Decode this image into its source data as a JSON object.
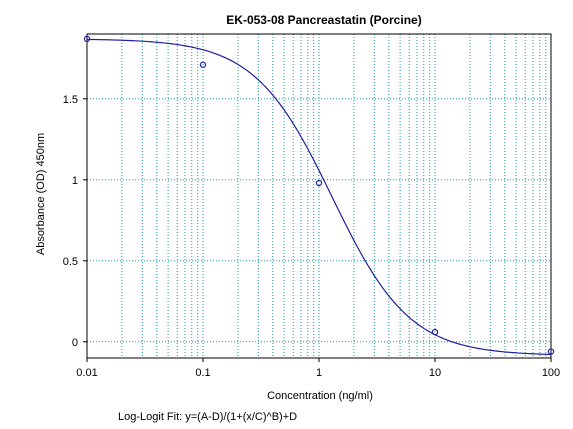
{
  "chart_data": {
    "type": "scatter",
    "title": "EK-053-08 Pancreastatin (Porcine)",
    "xlabel": "Concentration (ng/ml)",
    "ylabel": "Absorbance (OD) 450nm",
    "x_scale": "log",
    "xlim": [
      0.01,
      100
    ],
    "ylim": [
      -0.1,
      1.9
    ],
    "x_ticks": [
      0.01,
      0.1,
      1,
      10,
      100
    ],
    "x_tick_labels": [
      "0.01",
      "0.1",
      "1",
      "10",
      "100"
    ],
    "y_ticks": [
      0,
      0.5,
      1,
      1.5
    ],
    "y_tick_labels": [
      "0",
      "0.5",
      "1",
      "1.5"
    ],
    "grid": true,
    "series": [
      {
        "points": [
          {
            "x": 0.01,
            "y": 1.87
          },
          {
            "x": 0.1,
            "y": 1.71
          },
          {
            "x": 1,
            "y": 0.98
          },
          {
            "x": 10,
            "y": 0.06
          },
          {
            "x": 100,
            "y": -0.06
          }
        ],
        "fit": {
          "A": 1.87,
          "B": 1.3,
          "C": 1.3,
          "D": -0.085
        }
      }
    ],
    "colors": {
      "curve": "#1f1fa0",
      "grid": "#1a9aa0",
      "marker": "#1f1fa0"
    },
    "footnote": "Log-Logit Fit: y=(A-D)/(1+(x/C)^B)+D"
  }
}
